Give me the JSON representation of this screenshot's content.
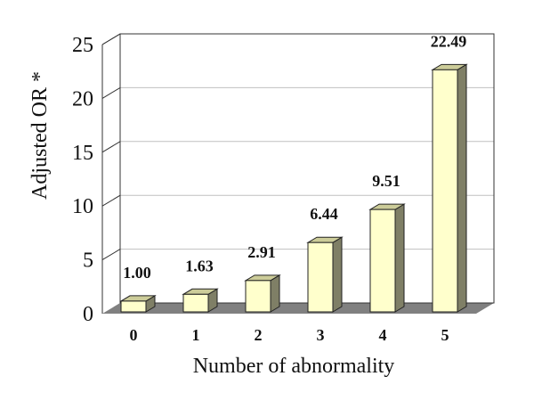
{
  "chart_data": {
    "type": "bar",
    "categories": [
      "0",
      "1",
      "2",
      "3",
      "4",
      "5"
    ],
    "values": [
      1.0,
      1.63,
      2.91,
      6.44,
      9.51,
      22.49
    ],
    "value_labels": [
      "1.00",
      "1.63",
      "2.91",
      "6.44",
      "9.51",
      "22.49"
    ],
    "xlabel": "Number of abnormality",
    "ylabel": "Adjusted OR *",
    "ylim": [
      0,
      25
    ],
    "yticks": [
      "0",
      "5",
      "10",
      "15",
      "20",
      "25"
    ],
    "grid": true,
    "style": "3d",
    "colors": {
      "bar_front": "#ffffcc",
      "bar_top": "#cccc99",
      "bar_side": "#7f7f66",
      "floor": "#808080",
      "grid": "#c0c0c0",
      "frame": "#333333"
    }
  }
}
